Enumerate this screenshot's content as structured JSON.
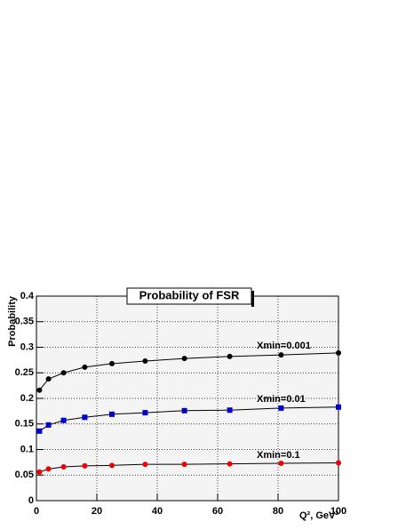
{
  "chart_data": {
    "type": "line",
    "title": "Probability of FSR",
    "x_label": "Q², GeV²",
    "y_label": "Probability",
    "x": [
      1,
      4,
      9,
      16,
      25,
      36,
      49,
      64,
      81,
      100
    ],
    "series": [
      {
        "name": "Xmin=0.001",
        "color": "#000000",
        "marker": "circle",
        "values": [
          0.216,
          0.238,
          0.25,
          0.261,
          0.268,
          0.273,
          0.278,
          0.282,
          0.285,
          0.289
        ]
      },
      {
        "name": "Xmin=0.01",
        "color": "#0000cc",
        "marker": "square",
        "values": [
          0.136,
          0.148,
          0.157,
          0.163,
          0.169,
          0.172,
          0.176,
          0.177,
          0.181,
          0.183
        ]
      },
      {
        "name": "Xmin=0.1",
        "color": "#ee0000",
        "marker": "circle",
        "values": [
          0.056,
          0.062,
          0.066,
          0.068,
          0.069,
          0.071,
          0.071,
          0.072,
          0.073,
          0.074
        ]
      }
    ],
    "xlim": [
      0,
      100
    ],
    "xticks": [
      0,
      20,
      40,
      60,
      80,
      100
    ],
    "ylim": [
      0,
      0.4
    ],
    "yticks": [
      0,
      0.05,
      0.1,
      0.15,
      0.2,
      0.25,
      0.3,
      0.35,
      0.4
    ],
    "grid": true
  }
}
